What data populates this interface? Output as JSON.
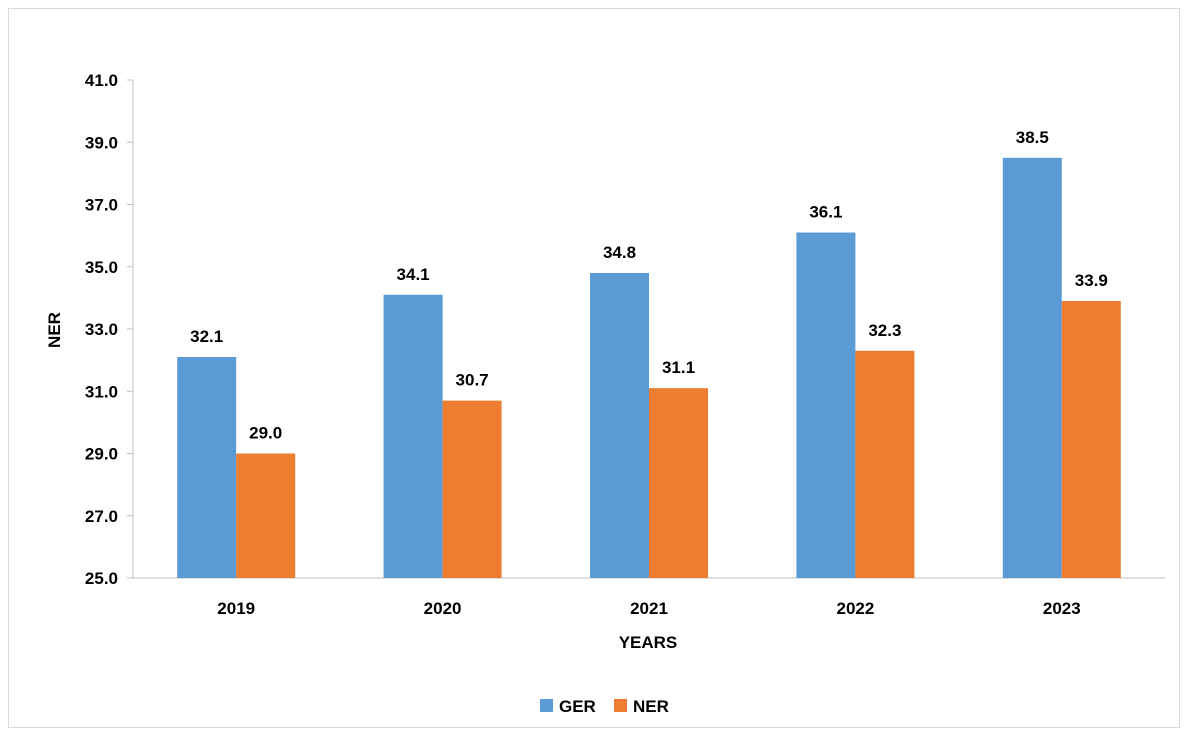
{
  "chart_data": {
    "type": "bar",
    "categories": [
      "2019",
      "2020",
      "2021",
      "2022",
      "2023"
    ],
    "series": [
      {
        "name": "GER",
        "values": [
          32.1,
          34.1,
          34.8,
          36.1,
          38.5
        ],
        "labels": [
          "32.1",
          "34.1",
          "34.8",
          "36.1",
          "38.5"
        ],
        "color": "#5b9bd5"
      },
      {
        "name": "NER",
        "values": [
          29.0,
          30.7,
          31.1,
          32.3,
          33.9
        ],
        "labels": [
          "29.0",
          "30.7",
          "31.1",
          "32.3",
          "33.9"
        ],
        "color": "#ed7d31"
      }
    ],
    "xlabel": "YEARS",
    "ylabel": "NER",
    "ylim": [
      25.0,
      41.0
    ],
    "yticks": [
      "25.0",
      "27.0",
      "29.0",
      "31.0",
      "33.0",
      "35.0",
      "37.0",
      "39.0",
      "41.0"
    ],
    "grid": false,
    "legend_position": "bottom"
  }
}
